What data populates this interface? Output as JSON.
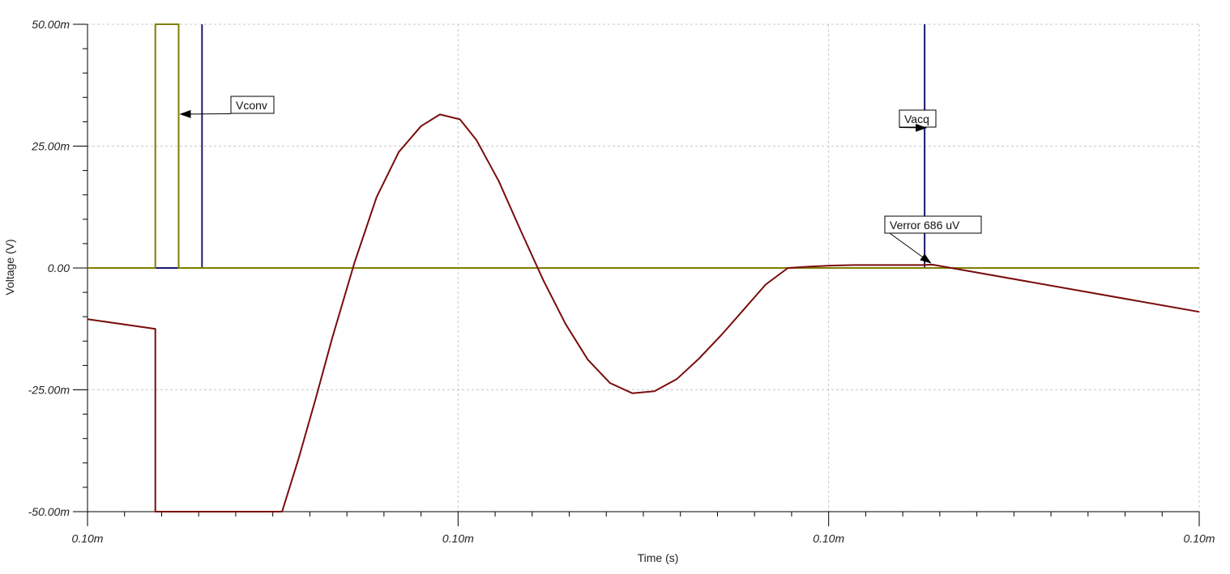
{
  "chart_data": {
    "type": "line",
    "title": "",
    "xlabel": "Time (s)",
    "ylabel": "Voltage (V)",
    "x_tick_labels": [
      "0.10m",
      "0.10m",
      "0.10m",
      "0.10m"
    ],
    "y_tick_labels": [
      "50.00m",
      "25.00m",
      "0.00",
      "-25.00m",
      "-50.00m"
    ],
    "ylim": [
      -0.05,
      0.05
    ],
    "grid": true,
    "colors": {
      "verror": "#7a0c0c",
      "vconv": "#7f7f00",
      "vacq": "#1a1a6e",
      "grid": "#c8c8c8",
      "axis": "#000000"
    },
    "annotations": [
      {
        "text": "Vconv",
        "target": "Vconv"
      },
      {
        "text": "Vacq",
        "target": "Vacq"
      },
      {
        "text": "Verror 686 uV",
        "target": "Verror"
      }
    ],
    "x_fraction_note": "x values are fractions of the time span between first and last tick",
    "series": [
      {
        "key": "verror",
        "x": [
          0.0,
          0.061,
          0.061,
          0.175,
          0.19,
          0.205,
          0.22,
          0.24,
          0.26,
          0.28,
          0.3,
          0.317,
          0.335,
          0.35,
          0.37,
          0.39,
          0.41,
          0.43,
          0.45,
          0.47,
          0.49,
          0.51,
          0.53,
          0.55,
          0.57,
          0.59,
          0.61,
          0.63,
          0.65,
          0.67,
          0.69,
          0.71,
          0.73,
          0.75,
          0.76,
          1.0
        ],
        "y": [
          -0.0105,
          -0.0125,
          -0.05,
          -0.05,
          -0.039,
          -0.027,
          -0.0145,
          0.001,
          0.0145,
          0.0238,
          0.0291,
          0.0315,
          0.0305,
          0.0262,
          0.0178,
          0.0075,
          -0.0025,
          -0.0115,
          -0.0188,
          -0.0236,
          -0.0257,
          -0.0253,
          -0.0228,
          -0.0186,
          -0.0138,
          -0.0086,
          -0.0034,
          0.0,
          0.0003,
          0.0005,
          0.0006,
          0.0006,
          0.0006,
          0.0006,
          0.000686,
          -0.009
        ]
      },
      {
        "key": "vconv",
        "x": [
          0.0,
          0.061,
          0.061,
          0.082,
          0.082,
          1.0
        ],
        "y": [
          0.0,
          0.0,
          0.05,
          0.05,
          0.0,
          0.0
        ]
      },
      {
        "key": "vacq",
        "x": [
          0.061,
          0.082,
          0.082,
          0.103,
          0.103,
          0.103,
          0.103,
          0.103,
          0.753,
          0.753
        ],
        "y": [
          0.0,
          0.0,
          0.0,
          0.0,
          0.05,
          0.0,
          0.0,
          0.0,
          0.0,
          0.05
        ]
      }
    ]
  }
}
